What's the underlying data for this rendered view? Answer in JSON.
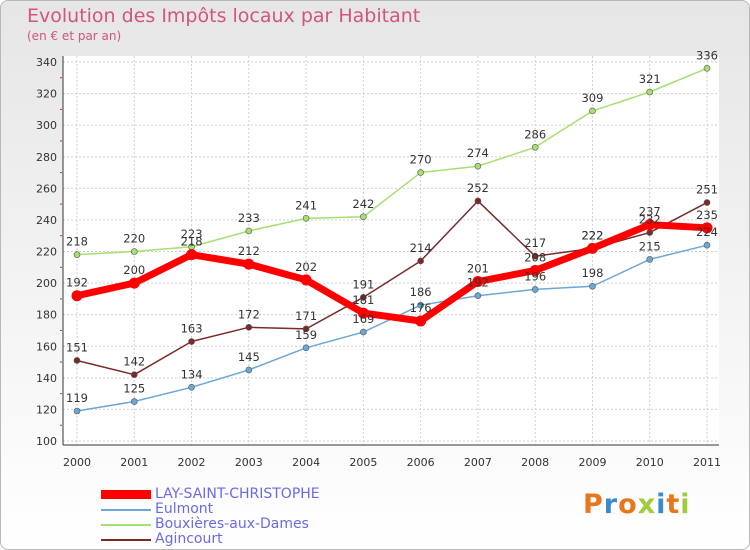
{
  "header": {
    "title": "Evolution des Impôts locaux par Habitant",
    "subtitle": "(en € et par an)"
  },
  "logo": {
    "text": "Proxiti",
    "colors": [
      "#e9761c",
      "#3a8ad2",
      "#e9761c",
      "#9fcc3b",
      "#3a8ad2",
      "#e9761c",
      "#9fcc3b"
    ]
  },
  "chart_data": {
    "type": "line",
    "x": [
      2000,
      2001,
      2002,
      2003,
      2004,
      2005,
      2006,
      2007,
      2008,
      2009,
      2010,
      2011
    ],
    "ylim": [
      100,
      340
    ],
    "yticks": [
      100,
      120,
      140,
      160,
      180,
      200,
      220,
      240,
      260,
      280,
      300,
      320,
      340
    ],
    "grid": true,
    "legend_position": "bottom-left",
    "series": [
      {
        "name": "LAY-SAINT-CHRISTOPHE",
        "color": "#ff0000",
        "width": 7,
        "values": [
          192,
          200,
          218,
          212,
          202,
          181,
          176,
          201,
          208,
          222,
          237,
          235
        ]
      },
      {
        "name": "Eulmont",
        "color": "#6da7d8",
        "width": 1.5,
        "values": [
          119,
          125,
          134,
          145,
          159,
          169,
          186,
          192,
          196,
          198,
          215,
          224
        ]
      },
      {
        "name": "Bouxières-aux-Dames",
        "color": "#a6e070",
        "width": 1.5,
        "values": [
          218,
          220,
          223,
          233,
          241,
          242,
          270,
          274,
          286,
          309,
          321,
          336
        ]
      },
      {
        "name": "Agincourt",
        "color": "#7b2a2a",
        "width": 1.5,
        "values": [
          151,
          142,
          163,
          172,
          171,
          191,
          214,
          252,
          217,
          222,
          232,
          251
        ]
      }
    ]
  }
}
